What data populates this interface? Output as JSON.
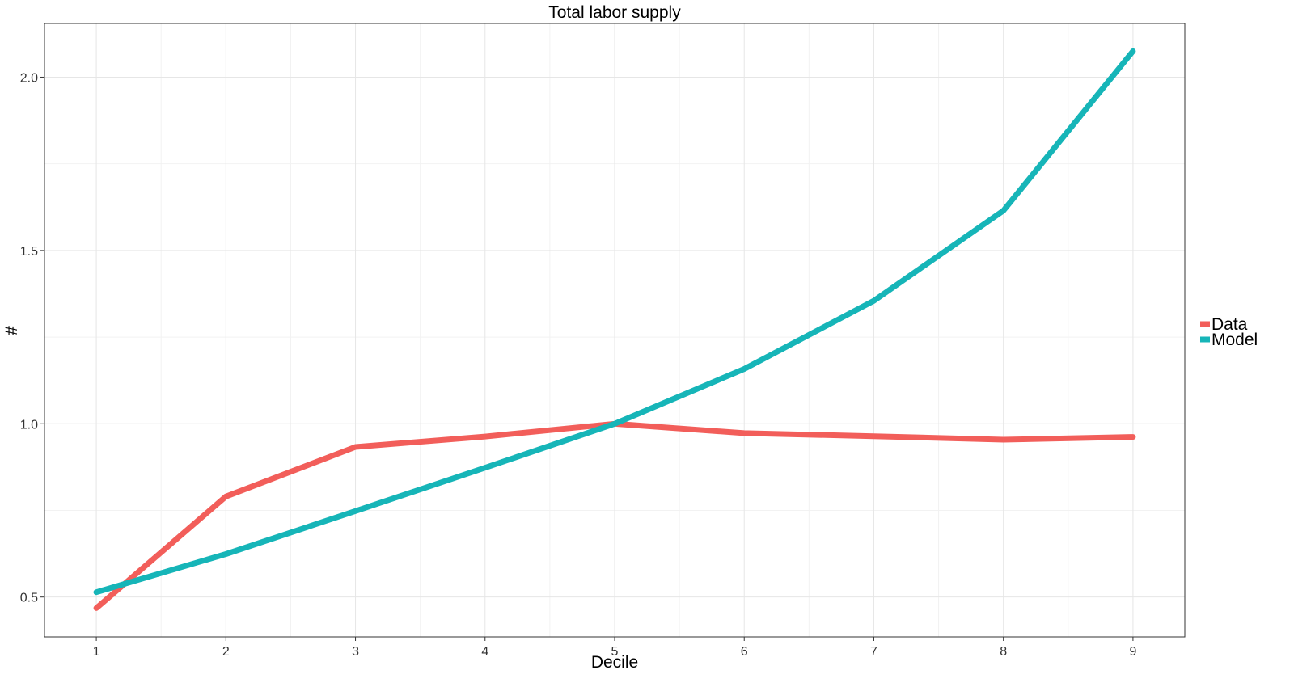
{
  "chart_data": {
    "type": "line",
    "title": "Total labor supply",
    "xlabel": "Decile",
    "ylabel": "#",
    "x": [
      1,
      2,
      3,
      4,
      5,
      6,
      7,
      8,
      9
    ],
    "xlim": [
      0.6,
      9.4
    ],
    "ylim": [
      0.385,
      2.155
    ],
    "xticks": [
      "1",
      "2",
      "3",
      "4",
      "5",
      "6",
      "7",
      "8",
      "9"
    ],
    "yticks": [
      "0.5",
      "1.0",
      "1.5",
      "2.0"
    ],
    "grid": true,
    "legend_position": "right",
    "series": [
      {
        "name": "Data",
        "color": "#F25E5A",
        "values": [
          0.468,
          0.79,
          0.933,
          0.963,
          1.0,
          0.973,
          0.964,
          0.954,
          0.962
        ]
      },
      {
        "name": "Model",
        "color": "#16B5B8",
        "values": [
          0.514,
          0.624,
          0.748,
          0.873,
          1.0,
          1.158,
          1.355,
          1.615,
          2.075
        ]
      }
    ]
  }
}
